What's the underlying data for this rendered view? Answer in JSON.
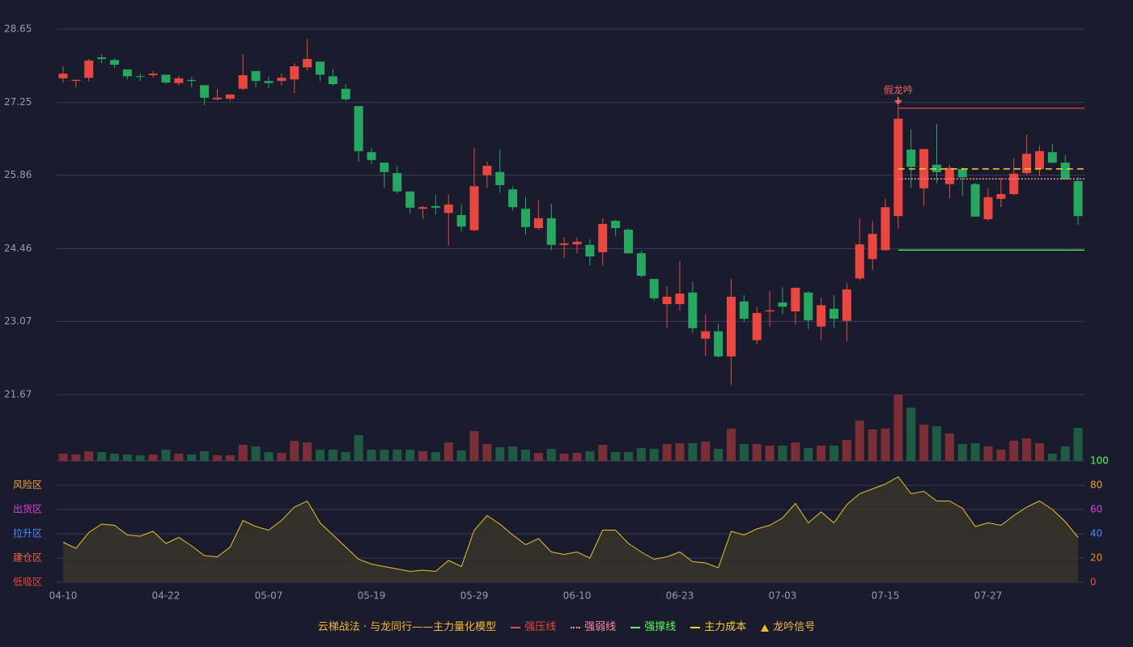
{
  "chart_data": [
    {
      "type": "candlestick",
      "categories": [
        "04-10",
        null,
        null,
        null,
        null,
        null,
        null,
        null,
        "04-22",
        null,
        null,
        null,
        null,
        null,
        null,
        null,
        "05-07",
        null,
        null,
        null,
        null,
        null,
        null,
        null,
        "05-19",
        null,
        null,
        null,
        null,
        null,
        null,
        null,
        "05-29",
        null,
        null,
        null,
        null,
        null,
        null,
        null,
        "06-10",
        null,
        null,
        null,
        null,
        null,
        null,
        null,
        "06-23",
        null,
        null,
        null,
        null,
        null,
        null,
        null,
        "07-03",
        null,
        null,
        null,
        null,
        null,
        null,
        null,
        "07-15",
        null,
        null,
        null,
        null,
        null,
        null,
        null,
        "07-27",
        null,
        null,
        null,
        null,
        null,
        null,
        null
      ],
      "open": [
        27.71,
        27.66,
        27.72,
        28.11,
        28.06,
        27.88,
        27.75,
        27.77,
        27.78,
        27.62,
        27.68,
        27.58,
        27.31,
        27.32,
        27.51,
        27.85,
        27.66,
        27.66,
        27.69,
        27.92,
        28.03,
        27.75,
        27.51,
        27.18,
        26.3,
        26.1,
        25.9,
        25.55,
        25.22,
        25.27,
        25.14,
        25.1,
        24.81,
        25.86,
        25.92,
        25.59,
        25.22,
        24.85,
        25.04,
        24.53,
        24.54,
        24.53,
        24.39,
        24.99,
        24.82,
        24.37,
        23.88,
        23.4,
        23.4,
        23.62,
        22.74,
        22.88,
        22.4,
        23.45,
        22.71,
        23.26,
        23.43,
        23.26,
        23.62,
        22.97,
        23.31,
        23.08,
        23.89,
        24.26,
        24.43,
        25.08,
        26.35,
        25.61,
        26.06,
        25.69,
        25.98,
        25.69,
        25.02,
        25.41,
        25.5,
        25.9,
        25.98,
        26.3,
        26.1,
        25.75
      ],
      "high": [
        27.94,
        27.69,
        28.08,
        28.17,
        28.09,
        27.88,
        27.8,
        27.85,
        27.78,
        27.75,
        27.74,
        27.58,
        27.51,
        27.41,
        28.17,
        27.85,
        27.74,
        27.8,
        28.0,
        28.46,
        28.03,
        27.89,
        27.6,
        27.18,
        26.38,
        26.1,
        26.04,
        25.55,
        25.28,
        25.48,
        25.5,
        25.3,
        26.38,
        26.12,
        26.35,
        25.65,
        25.45,
        25.38,
        25.32,
        24.68,
        24.67,
        24.64,
        25.04,
        25.01,
        24.85,
        24.42,
        23.88,
        23.74,
        24.22,
        23.83,
        23.2,
        23.03,
        23.88,
        23.57,
        23.34,
        23.65,
        23.72,
        23.72,
        23.65,
        23.52,
        23.57,
        23.8,
        25.04,
        24.99,
        25.41,
        27.2,
        26.74,
        26.36,
        26.84,
        26.06,
        26.01,
        25.72,
        25.61,
        25.81,
        26.18,
        26.63,
        26.43,
        26.46,
        26.24,
        25.82
      ],
      "low": [
        27.63,
        27.54,
        27.65,
        28.0,
        27.91,
        27.69,
        27.66,
        27.72,
        27.6,
        27.57,
        27.54,
        27.2,
        27.29,
        27.28,
        27.48,
        27.54,
        27.52,
        27.57,
        27.43,
        27.86,
        27.66,
        27.57,
        27.28,
        26.12,
        26.07,
        25.62,
        25.5,
        25.13,
        25.02,
        25.11,
        24.51,
        24.79,
        24.79,
        25.62,
        25.53,
        25.19,
        24.73,
        24.82,
        24.42,
        24.28,
        24.37,
        24.14,
        24.13,
        24.7,
        24.37,
        23.91,
        23.46,
        22.94,
        23.28,
        22.84,
        22.41,
        22.38,
        21.86,
        23.06,
        22.63,
        22.97,
        23.2,
        23.01,
        22.92,
        22.71,
        22.94,
        22.69,
        23.85,
        24.05,
        24.42,
        24.84,
        25.62,
        25.27,
        25.7,
        25.42,
        25.47,
        25.07,
        24.99,
        25.25,
        25.47,
        25.87,
        25.84,
        26.09,
        25.78,
        24.91
      ],
      "close": [
        27.8,
        27.68,
        28.05,
        28.08,
        27.97,
        27.75,
        27.74,
        27.8,
        27.63,
        27.71,
        27.66,
        27.34,
        27.34,
        27.4,
        27.77,
        27.66,
        27.62,
        27.72,
        27.94,
        28.08,
        27.78,
        27.6,
        27.31,
        26.32,
        26.15,
        25.92,
        25.55,
        25.24,
        25.25,
        25.24,
        25.3,
        24.88,
        25.65,
        26.04,
        25.67,
        25.25,
        24.87,
        25.04,
        24.53,
        24.56,
        24.59,
        24.31,
        24.93,
        24.85,
        24.37,
        23.94,
        23.51,
        23.54,
        23.6,
        22.94,
        22.88,
        22.4,
        23.54,
        23.12,
        23.23,
        23.28,
        23.35,
        23.71,
        23.09,
        23.38,
        23.12,
        23.68,
        24.54,
        24.74,
        25.25,
        26.94,
        26.02,
        26.36,
        25.92,
        26.0,
        25.82,
        25.07,
        25.44,
        25.5,
        25.89,
        26.27,
        26.32,
        26.1,
        25.78,
        25.08
      ],
      "up_color": "#e8483f",
      "down_color": "#26a862",
      "ylim": [
        21.67,
        28.65
      ],
      "yticks": [
        28.65,
        27.25,
        25.86,
        24.46,
        23.07,
        21.67
      ],
      "grid": true,
      "levels": [
        {
          "name": "强压线",
          "value": 27.14,
          "color": "#e8483f",
          "style": "solid"
        },
        {
          "name": "强弱线",
          "value": 25.79,
          "color": "#ff8aa0",
          "style": "dotted"
        },
        {
          "name": "强撑线",
          "value": 24.43,
          "color": "#4cff5a",
          "style": "solid"
        },
        {
          "name": "主力成本",
          "value": 25.98,
          "color": "#f5d130",
          "style": "dashed"
        }
      ],
      "signal": {
        "name": "龙吟信号",
        "label": "假龙吟",
        "index": 65,
        "color": "#f06060",
        "legend_color": "#f5b830"
      },
      "legend_title": "云梯战法 · 与龙同行——主力量化模型"
    },
    {
      "type": "bar",
      "values": [
        9,
        8,
        12,
        11,
        9,
        8,
        7,
        8,
        14,
        9,
        8,
        12,
        7,
        7,
        20,
        18,
        11,
        10,
        25,
        23,
        14,
        14,
        11,
        32,
        14,
        14,
        14,
        14,
        12,
        11,
        23,
        13,
        37,
        21,
        17,
        18,
        14,
        10,
        15,
        9,
        10,
        12,
        20,
        11,
        11,
        16,
        15,
        21,
        22,
        22,
        24,
        15,
        40,
        21,
        21,
        19,
        19,
        23,
        16,
        19,
        19,
        26,
        50,
        39,
        40,
        82,
        66,
        45,
        43,
        34,
        21,
        22,
        18,
        14,
        25,
        28,
        22,
        9,
        18,
        41
      ],
      "up_color": "#7a2f38",
      "down_color": "#1f5a45"
    },
    {
      "type": "area",
      "values": [
        33,
        28,
        41,
        48,
        47,
        39,
        38,
        42,
        32,
        37,
        30,
        22,
        21,
        29,
        51,
        46,
        43,
        51,
        62,
        67,
        49,
        39,
        29,
        19,
        15,
        13,
        11,
        9,
        10,
        9,
        18,
        13,
        43,
        55,
        48,
        39,
        31,
        36,
        25,
        23,
        25,
        20,
        43,
        43,
        32,
        25,
        19,
        21,
        25,
        17,
        16,
        12,
        42,
        39,
        44,
        47,
        53,
        65,
        49,
        58,
        49,
        64,
        73,
        77,
        81,
        87,
        73,
        75,
        67,
        67,
        61,
        46,
        49,
        47,
        55,
        62,
        67,
        60,
        50,
        37
      ],
      "color": "#e8c22a",
      "fill": "#3a3428",
      "ylim": [
        0,
        100
      ],
      "yticks": [
        0,
        20,
        40,
        60,
        80,
        100
      ],
      "ytick_colors": [
        "#e8483f",
        "#f08a30",
        "#4a8cf0",
        "#e040e0",
        "#f0a030",
        "#4cff5a"
      ],
      "zones": [
        {
          "label": "风险区",
          "value": 80,
          "color": "#f0a030"
        },
        {
          "label": "出货区",
          "value": 60,
          "color": "#e040e0"
        },
        {
          "label": "拉升区",
          "value": 40,
          "color": "#4a8cf0"
        },
        {
          "label": "建仓区",
          "value": 20,
          "color": "#f06040"
        },
        {
          "label": "低吸区",
          "value": 0,
          "color": "#e8483f"
        }
      ]
    }
  ]
}
